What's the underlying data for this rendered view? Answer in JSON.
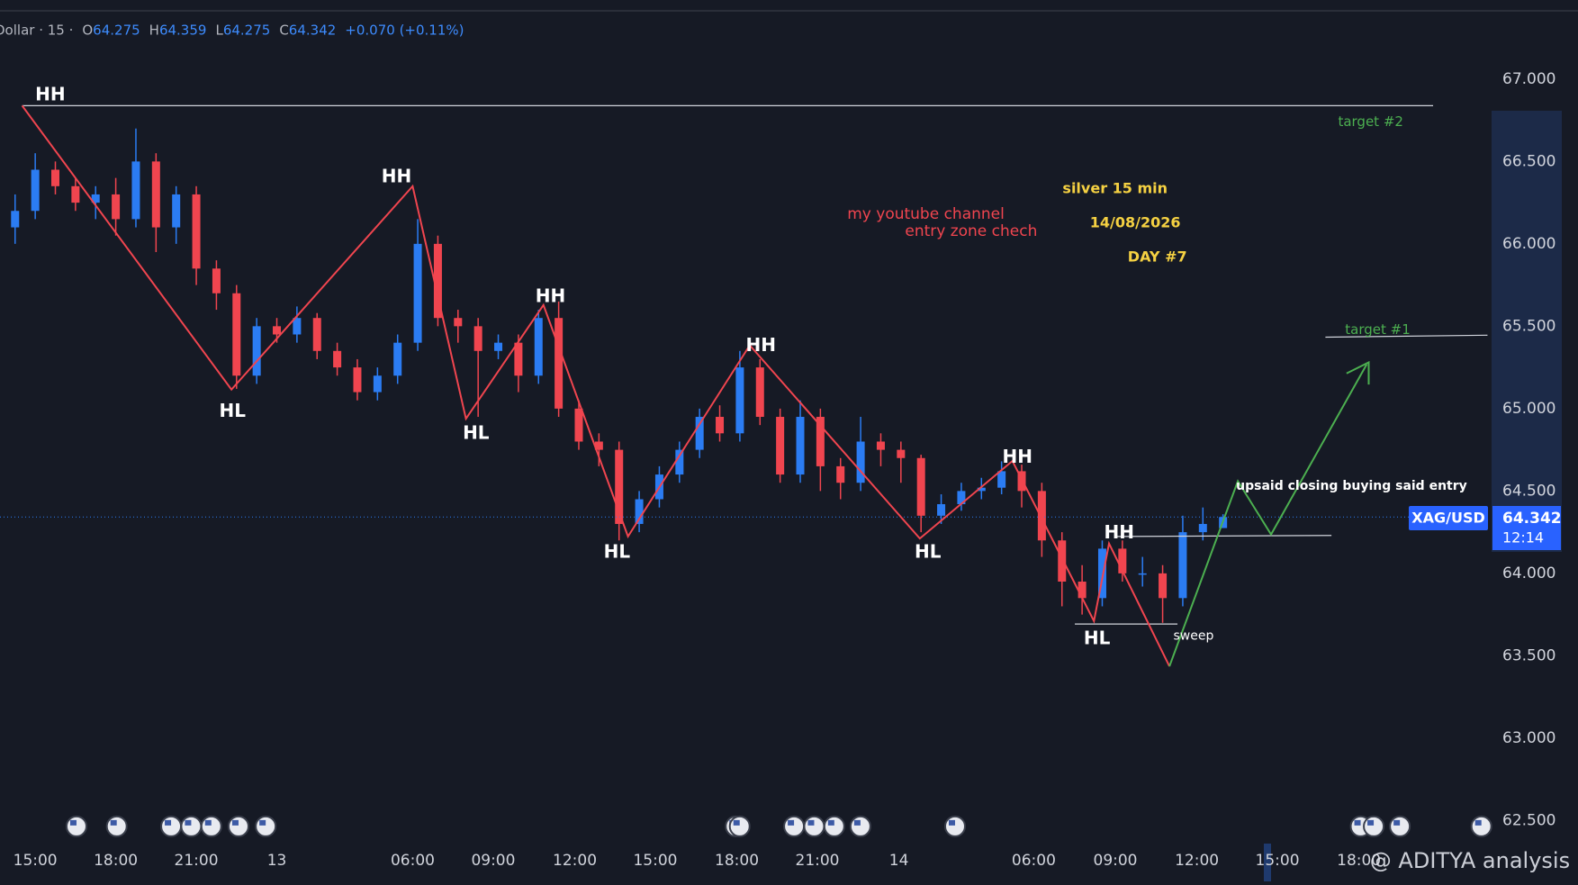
{
  "chart_data": {
    "type": "candlestick",
    "symbol_prefix": "Dollar · 15 ·",
    "ohlc_labels": [
      "O",
      "H",
      "L",
      "C"
    ],
    "change_label": "+0.070 (+0.11%)",
    "x": [
      -1,
      0,
      1,
      2,
      3,
      4,
      5,
      6,
      7,
      8,
      9,
      10,
      11,
      12,
      13,
      14,
      15,
      16,
      17,
      18,
      19,
      20,
      21,
      22,
      23,
      24,
      25,
      26,
      27,
      28,
      29,
      30,
      31,
      32,
      33,
      34,
      35,
      36,
      37,
      38,
      39,
      40,
      41,
      42,
      43,
      44,
      45,
      46,
      47,
      48,
      49,
      50,
      51,
      52,
      53,
      54,
      55,
      56,
      57,
      58,
      59
    ],
    "open": [
      66.1,
      66.2,
      66.45,
      66.35,
      66.25,
      66.3,
      66.15,
      66.5,
      66.1,
      66.3,
      65.85,
      65.7,
      65.2,
      65.5,
      65.45,
      65.55,
      65.35,
      65.25,
      65.1,
      65.2,
      65.4,
      66.0,
      65.55,
      65.5,
      65.35,
      65.4,
      65.2,
      65.55,
      65.0,
      64.8,
      64.75,
      64.3,
      64.45,
      64.6,
      64.75,
      64.95,
      64.85,
      65.25,
      64.95,
      64.6,
      64.95,
      64.65,
      64.55,
      64.8,
      64.75,
      64.7,
      64.35,
      64.42,
      64.5,
      64.52,
      64.62,
      64.5,
      64.2,
      63.95,
      63.85,
      64.15,
      64.0,
      64.0,
      63.85,
      64.25,
      64.275
    ],
    "high": [
      66.3,
      66.55,
      66.5,
      66.4,
      66.35,
      66.4,
      66.7,
      66.55,
      66.35,
      66.35,
      65.9,
      65.75,
      65.55,
      65.55,
      65.62,
      65.58,
      65.4,
      65.3,
      65.25,
      65.45,
      66.15,
      66.05,
      65.6,
      65.55,
      65.45,
      65.45,
      65.6,
      65.65,
      65.05,
      64.85,
      64.8,
      64.5,
      64.65,
      64.8,
      65.0,
      65.02,
      65.35,
      65.3,
      65.0,
      65.05,
      65.0,
      64.7,
      64.95,
      64.85,
      64.8,
      64.72,
      64.48,
      64.55,
      64.58,
      64.68,
      64.66,
      64.55,
      64.25,
      64.05,
      64.2,
      64.2,
      64.1,
      64.05,
      64.35,
      64.4,
      64.359
    ],
    "low": [
      66.0,
      66.15,
      66.3,
      66.2,
      66.15,
      66.05,
      66.1,
      65.95,
      66.0,
      65.75,
      65.6,
      65.12,
      65.15,
      65.4,
      65.4,
      65.3,
      65.2,
      65.05,
      65.05,
      65.15,
      65.35,
      65.5,
      65.4,
      64.95,
      65.3,
      65.1,
      65.15,
      64.95,
      64.75,
      64.65,
      64.2,
      64.25,
      64.4,
      64.55,
      64.7,
      64.8,
      64.8,
      64.9,
      64.55,
      64.55,
      64.5,
      64.45,
      64.5,
      64.65,
      64.55,
      64.25,
      64.3,
      64.38,
      64.45,
      64.48,
      64.4,
      64.1,
      63.8,
      63.75,
      63.8,
      63.95,
      63.92,
      63.7,
      63.8,
      64.2,
      64.275
    ],
    "close": [
      66.2,
      66.45,
      66.35,
      66.25,
      66.3,
      66.15,
      66.5,
      66.1,
      66.3,
      65.85,
      65.7,
      65.2,
      65.5,
      65.45,
      65.55,
      65.35,
      65.25,
      65.1,
      65.2,
      65.4,
      66.0,
      65.55,
      65.5,
      65.35,
      65.4,
      65.2,
      65.55,
      65.0,
      64.8,
      64.75,
      64.3,
      64.45,
      64.6,
      64.75,
      64.95,
      64.85,
      65.25,
      64.95,
      64.6,
      64.95,
      64.65,
      64.55,
      64.8,
      64.75,
      64.7,
      64.35,
      64.42,
      64.5,
      64.52,
      64.62,
      64.5,
      64.2,
      63.95,
      63.85,
      64.15,
      64.0,
      64.0,
      63.85,
      64.25,
      64.3,
      64.342
    ],
    "up_color": "#2b7cf3",
    "down_color": "#f0454f",
    "xlim": [
      -1.75,
      72.25
    ],
    "xticks": [
      {
        "value": 0,
        "label": "15:00"
      },
      {
        "value": 4,
        "label": "18:00"
      },
      {
        "value": 8,
        "label": "21:00"
      },
      {
        "value": 12,
        "label": "13"
      },
      {
        "value": 18.75,
        "label": "06:00"
      },
      {
        "value": 22.75,
        "label": "09:00"
      },
      {
        "value": 26.8,
        "label": "12:00"
      },
      {
        "value": 30.8,
        "label": "15:00"
      },
      {
        "value": 34.85,
        "label": "18:00"
      },
      {
        "value": 38.85,
        "label": "21:00"
      },
      {
        "value": 42.9,
        "label": "14"
      },
      {
        "value": 49.6,
        "label": "06:00"
      },
      {
        "value": 53.65,
        "label": "09:00"
      },
      {
        "value": 57.7,
        "label": "12:00"
      },
      {
        "value": 61.7,
        "label": "15:00"
      },
      {
        "value": 65.75,
        "label": "18:00"
      }
    ],
    "ylim": [
      62.36,
      67.48
    ],
    "yticks": [
      {
        "value": 67,
        "label": "67.000"
      },
      {
        "value": 66.5,
        "label": "66.500"
      },
      {
        "value": 66,
        "label": "66.000"
      },
      {
        "value": 65.5,
        "label": "65.500"
      },
      {
        "value": 65,
        "label": "65.000"
      },
      {
        "value": 64.5,
        "label": "64.500"
      },
      {
        "value": 64,
        "label": "64.000"
      },
      {
        "value": 63.5,
        "label": "63.500"
      },
      {
        "value": 63,
        "label": "63.000"
      },
      {
        "value": 62.5,
        "label": "62.500"
      }
    ],
    "grid": false,
    "symbol": "XAG/USD",
    "countdown": "12:14",
    "swing_labels": [
      "HH",
      "HL",
      "HH",
      "HL",
      "HH",
      "HL",
      "HH",
      "HL",
      "HH",
      "HH",
      "HL"
    ],
    "notes": [
      "silver  15 min",
      "14/08/2026",
      "DAY #7",
      "my youtube channel",
      "entry zone chech",
      "upsaid closing  buying said entry",
      "sweep",
      "target #2",
      "target #1"
    ],
    "watermark": "@ ADITYA analysis"
  }
}
